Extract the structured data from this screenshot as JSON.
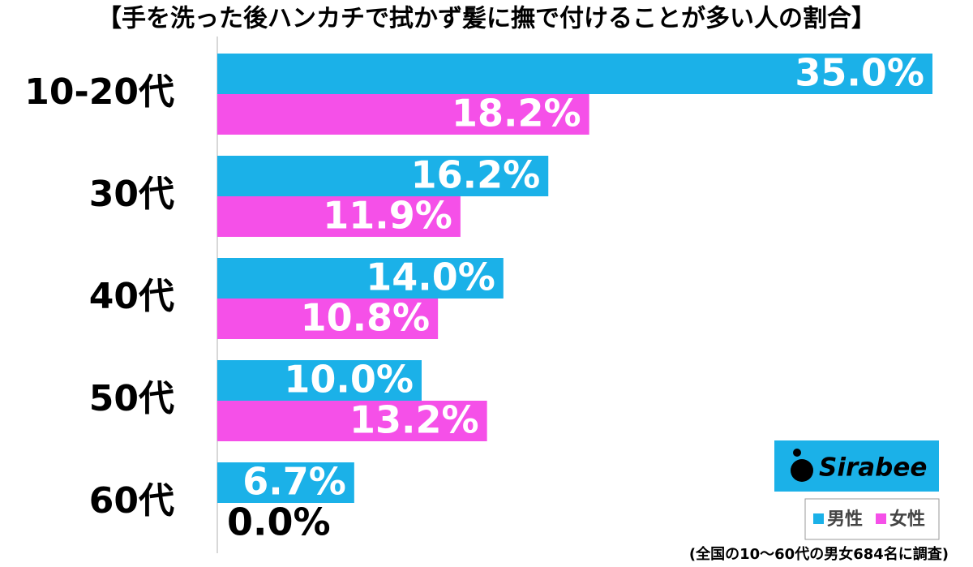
{
  "chart_data": {
    "type": "hbar",
    "title": "【手を洗った後ハンカチで拭かず髪に撫で付けることが多い人の割合】",
    "categories": [
      "10-20代",
      "30代",
      "40代",
      "50代",
      "60代"
    ],
    "series": [
      {
        "name": "男性",
        "color": "#1bb1e8",
        "values": [
          35.0,
          16.2,
          14.0,
          10.0,
          6.7
        ],
        "value_labels": [
          "35.0%",
          "16.2%",
          "14.0%",
          "10.0%",
          "6.7%"
        ]
      },
      {
        "name": "女性",
        "color": "#f550e8",
        "values": [
          18.2,
          11.9,
          10.8,
          13.2,
          0.0
        ],
        "value_labels": [
          "18.2%",
          "11.9%",
          "10.8%",
          "13.2%",
          "0.0%"
        ]
      }
    ],
    "logo": "Sirabee",
    "note": "(全国の10～60代の男女684名に調査)"
  }
}
